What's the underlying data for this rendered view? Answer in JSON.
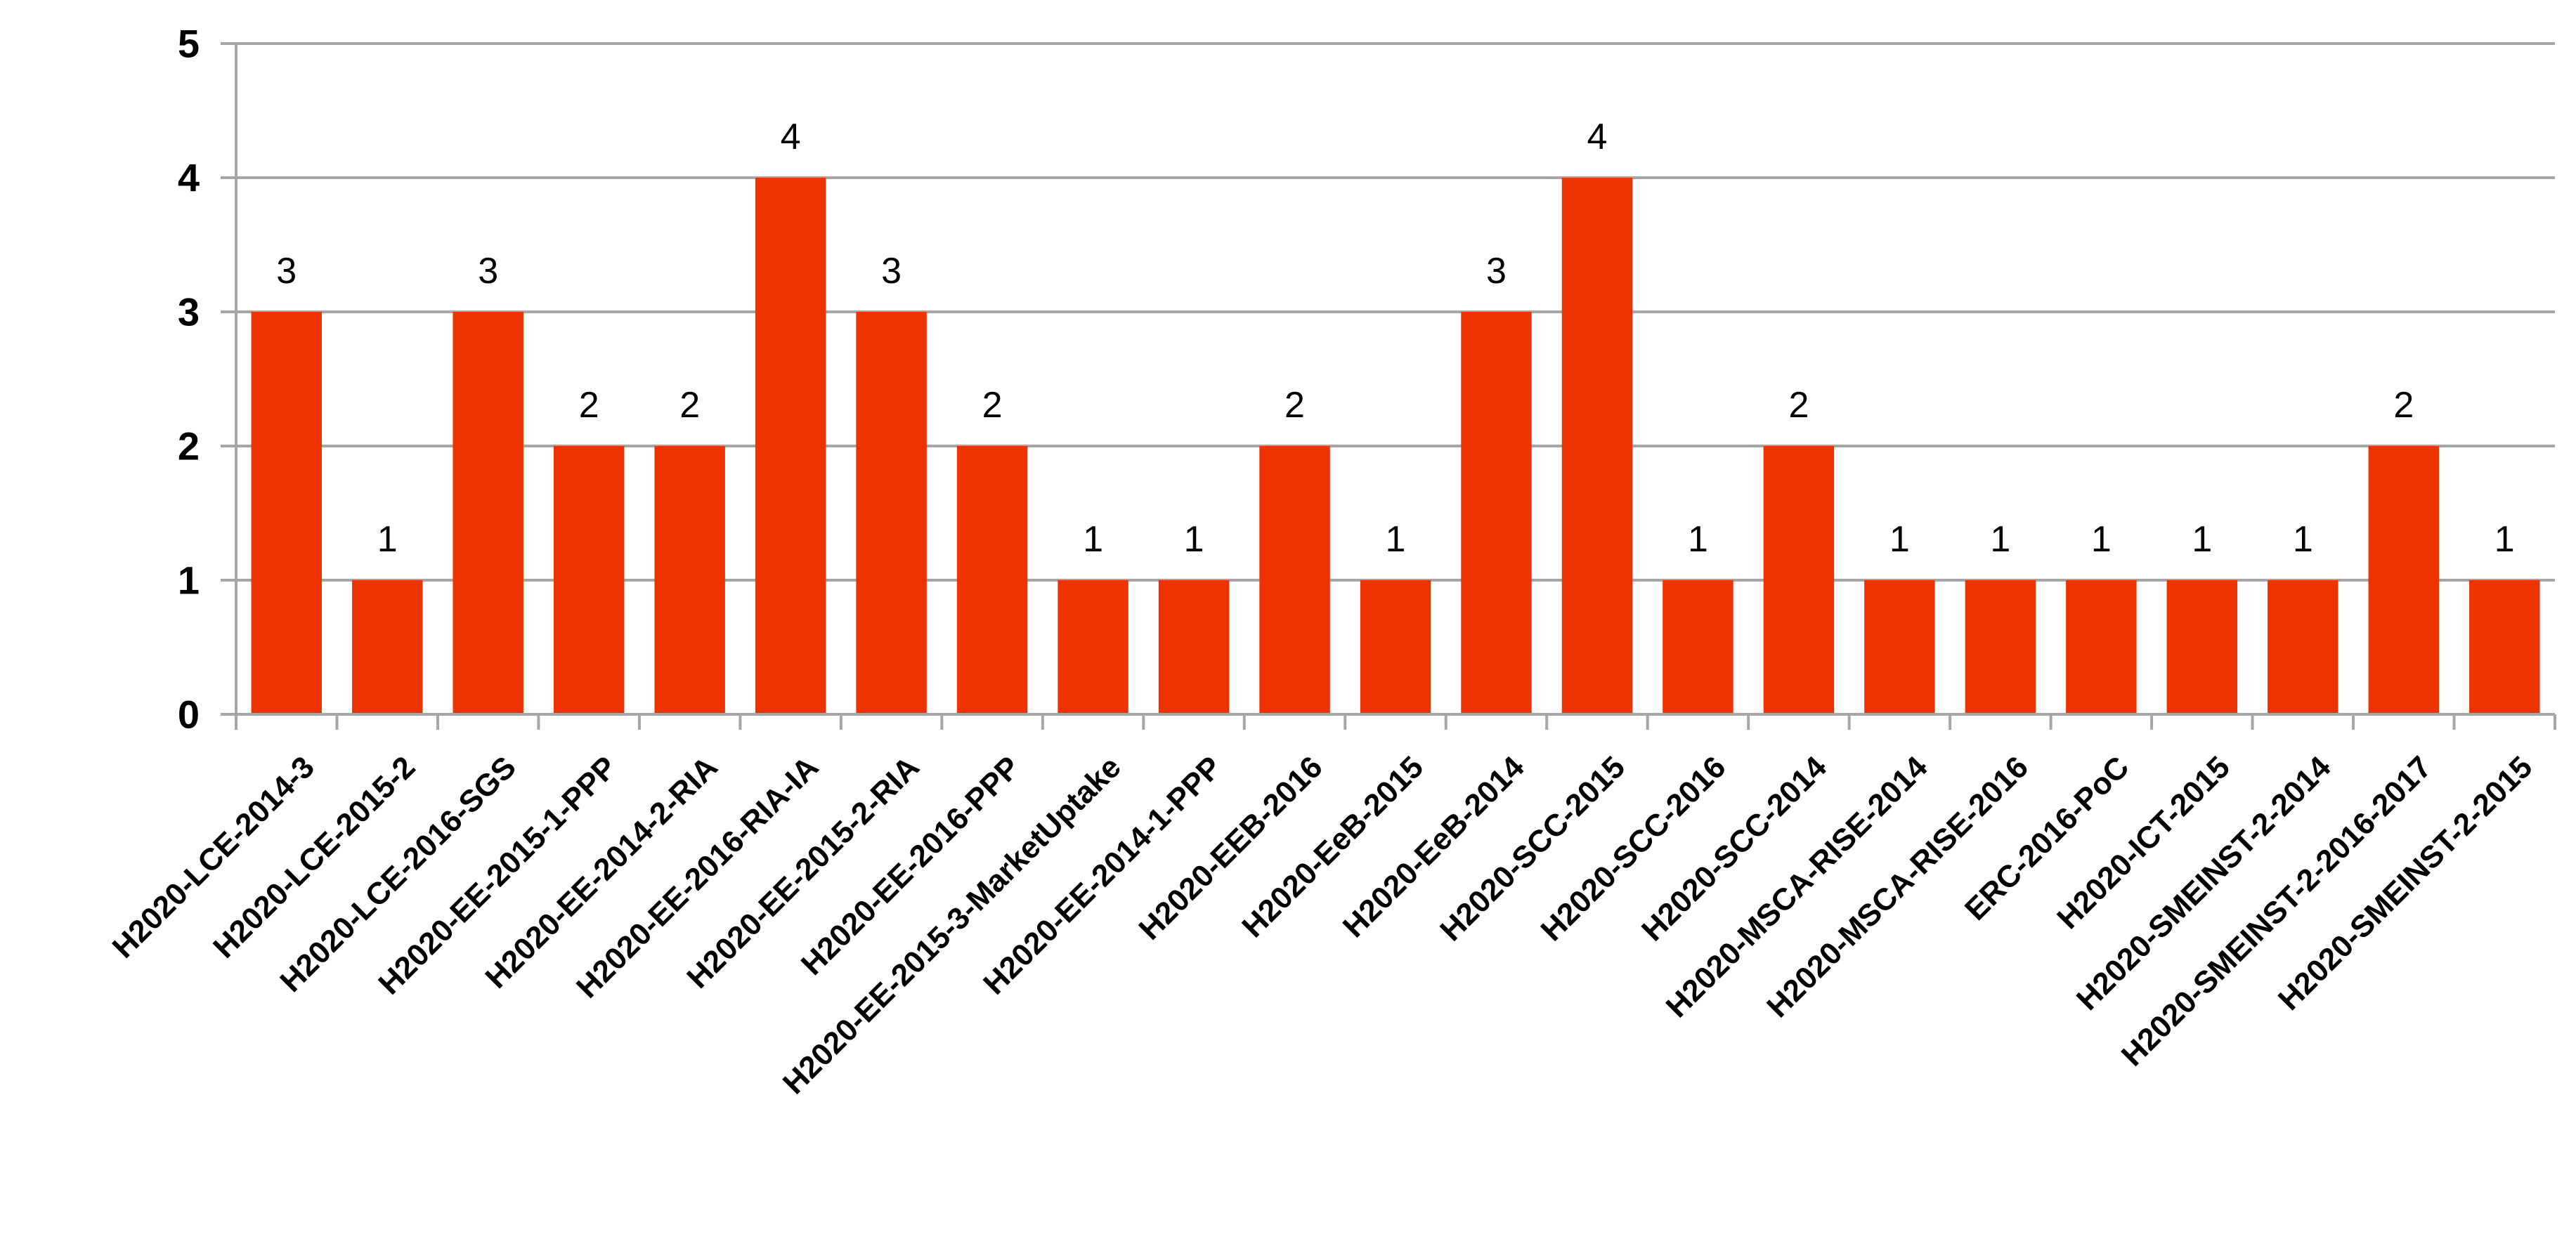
{
  "chart_data": {
    "type": "bar",
    "categories": [
      "H2020-LCE-2014-3",
      "H2020-LCE-2015-2",
      "H2020-LCE-2016-SGS",
      "H2020-EE-2015-1-PPP",
      "H2020-EE-2014-2-RIA",
      "H2020-EE-2016-RIA-IA",
      "H2020-EE-2015-2-RIA",
      "H2020-EE-2016-PPP",
      "H2020-EE-2015-3-MarketUptake",
      "H2020-EE-2014-1-PPP",
      "H2020-EEB-2016",
      "H2020-EeB-2015",
      "H2020-EeB-2014",
      "H2020-SCC-2015",
      "H2020-SCC-2016",
      "H2020-SCC-2014",
      "H2020-MSCA-RISE-2014",
      "H2020-MSCA-RISE-2016",
      "ERC-2016-PoC",
      "H2020-ICT-2015",
      "H2020-SMEINST-2-2014",
      "H2020-SMEINST-2-2016-2017",
      "H2020-SMEINST-2-2015"
    ],
    "values": [
      3,
      1,
      3,
      2,
      2,
      4,
      3,
      2,
      1,
      1,
      2,
      1,
      3,
      4,
      1,
      2,
      1,
      1,
      1,
      1,
      1,
      2,
      1
    ],
    "data_labels": [
      "3",
      "1",
      "3",
      "2",
      "2",
      "4",
      "3",
      "2",
      "1",
      "1",
      "2",
      "1",
      "3",
      "4",
      "1",
      "2",
      "1",
      "1",
      "1",
      "1",
      "1",
      "2",
      "1"
    ],
    "yticks": [
      "0",
      "1",
      "2",
      "3",
      "4",
      "5"
    ],
    "ylim": [
      0,
      5
    ],
    "grid": true,
    "bar_color": "#EE3300",
    "grid_color": "#A6A6A6",
    "title": "",
    "xlabel": "",
    "ylabel": ""
  }
}
